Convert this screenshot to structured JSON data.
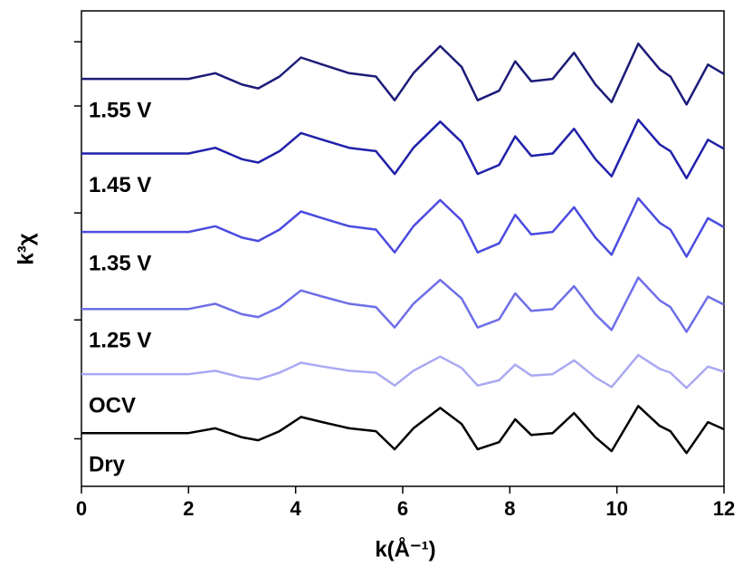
{
  "chart_data": {
    "type": "line",
    "xlabel": "k(Å⁻¹)",
    "ylabel": "k³χ",
    "x": [
      0,
      1,
      2,
      2.5,
      3,
      3.3,
      3.7,
      4.1,
      4.5,
      5,
      5.5,
      5.85,
      6.2,
      6.7,
      7.1,
      7.4,
      7.8,
      8.1,
      8.4,
      8.8,
      9.2,
      9.6,
      9.9,
      10.4,
      10.8,
      11.0,
      11.3,
      11.7,
      12
    ],
    "series": [
      {
        "name": "1.55 V",
        "color": "#1c1c78",
        "values": [
          8.57,
          8.57,
          8.57,
          8.69,
          8.45,
          8.37,
          8.62,
          9.02,
          8.87,
          8.69,
          8.62,
          8.12,
          8.69,
          9.26,
          8.82,
          8.12,
          8.32,
          8.94,
          8.52,
          8.57,
          9.12,
          8.45,
          8.08,
          9.31,
          8.77,
          8.62,
          8.03,
          8.87,
          8.67
        ]
      },
      {
        "name": "1.45 V",
        "color": "#2020aa",
        "values": [
          7.0,
          7.0,
          7.0,
          7.12,
          6.88,
          6.81,
          7.05,
          7.43,
          7.29,
          7.12,
          7.05,
          6.57,
          7.12,
          7.67,
          7.24,
          6.57,
          6.76,
          7.36,
          6.95,
          7.0,
          7.52,
          6.88,
          6.52,
          7.71,
          7.19,
          7.05,
          6.48,
          7.29,
          7.1
        ]
      },
      {
        "name": "1.35 V",
        "color": "#4b4be0",
        "values": [
          5.35,
          5.35,
          5.35,
          5.47,
          5.23,
          5.16,
          5.4,
          5.78,
          5.64,
          5.47,
          5.4,
          4.92,
          5.47,
          6.02,
          5.59,
          4.92,
          5.11,
          5.71,
          5.3,
          5.35,
          5.87,
          5.23,
          4.87,
          6.06,
          5.54,
          5.4,
          4.83,
          5.64,
          5.45
        ]
      },
      {
        "name": "1.25 V",
        "color": "#6e6ee8",
        "values": [
          3.73,
          3.73,
          3.73,
          3.84,
          3.62,
          3.56,
          3.77,
          4.12,
          3.99,
          3.84,
          3.77,
          3.34,
          3.84,
          4.34,
          3.95,
          3.34,
          3.51,
          4.06,
          3.69,
          3.73,
          4.21,
          3.62,
          3.29,
          4.39,
          3.91,
          3.77,
          3.25,
          3.99,
          3.82
        ]
      },
      {
        "name": "OCV",
        "color": "#a9a9f2",
        "values": [
          2.36,
          2.36,
          2.36,
          2.43,
          2.29,
          2.25,
          2.39,
          2.6,
          2.52,
          2.43,
          2.39,
          2.12,
          2.43,
          2.73,
          2.49,
          2.12,
          2.23,
          2.56,
          2.33,
          2.36,
          2.65,
          2.29,
          2.09,
          2.76,
          2.47,
          2.39,
          2.07,
          2.52,
          2.41
        ]
      },
      {
        "name": "Dry",
        "color": "#000000",
        "values": [
          1.12,
          1.12,
          1.12,
          1.22,
          1.03,
          0.97,
          1.16,
          1.46,
          1.35,
          1.22,
          1.16,
          0.78,
          1.22,
          1.65,
          1.31,
          0.78,
          0.93,
          1.41,
          1.08,
          1.12,
          1.54,
          1.03,
          0.74,
          1.69,
          1.27,
          1.16,
          0.7,
          1.35,
          1.2
        ]
      }
    ],
    "xlim": [
      0,
      12
    ],
    "xticks": [
      0,
      2,
      4,
      6,
      8,
      10,
      12
    ],
    "ylim": [
      0,
      10
    ],
    "yticks": [
      1,
      3.5,
      5.75,
      8,
      9.35
    ]
  }
}
